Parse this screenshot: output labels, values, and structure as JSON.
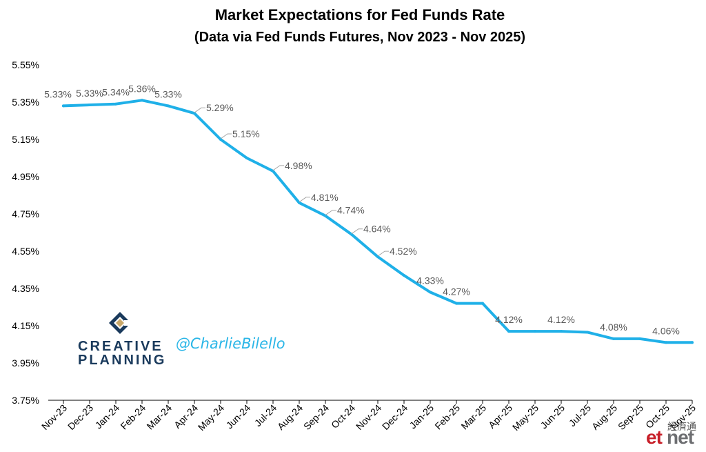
{
  "chart_data": {
    "type": "line",
    "title": "Market Expectations for Fed Funds Rate",
    "subtitle": "(Data via Fed Funds Futures, Nov 2023 - Nov 2025)",
    "categories": [
      "Nov-23",
      "Dec-23",
      "Jan-24",
      "Feb-24",
      "Mar-24",
      "Apr-24",
      "May-24",
      "Jun-24",
      "Jul-24",
      "Aug-24",
      "Sep-24",
      "Oct-24",
      "Nov-24",
      "Dec-24",
      "Jan-25",
      "Feb-25",
      "Mar-25",
      "Apr-25",
      "May-25",
      "Jun-25",
      "Jul-25",
      "Aug-25",
      "Sep-25",
      "Oct-25",
      "Nov-25"
    ],
    "series": [
      {
        "values": [
          5.33,
          5.335,
          5.34,
          5.36,
          5.33,
          5.29,
          5.15,
          5.05,
          4.98,
          4.81,
          4.74,
          4.64,
          4.52,
          4.42,
          4.33,
          4.27,
          4.27,
          4.12,
          4.12,
          4.12,
          4.115,
          4.08,
          4.08,
          4.06,
          4.06
        ],
        "labels": [
          "5.33%",
          "5.33%",
          "5.34%",
          "5.36%",
          "5.33%",
          "5.29%",
          "5.15%",
          "",
          "4.98%",
          "4.81%",
          "4.74%",
          "4.64%",
          "4.52%",
          "",
          "4.33%",
          "4.27%",
          "",
          "4.12%",
          "",
          "4.12%",
          "",
          "4.08%",
          "",
          "4.06%",
          ""
        ],
        "color": "#1fb0e8"
      }
    ],
    "ylim": [
      3.75,
      5.55
    ],
    "yticks": [
      "3.75%",
      "3.95%",
      "4.15%",
      "4.35%",
      "4.55%",
      "4.75%",
      "4.95%",
      "5.15%",
      "5.35%",
      "5.55%"
    ],
    "ytick_values": [
      3.75,
      3.95,
      4.15,
      4.35,
      4.55,
      4.75,
      4.95,
      5.15,
      5.35,
      5.55
    ],
    "xlabel": "",
    "ylabel": "",
    "grid": false,
    "legend": "none"
  },
  "branding": {
    "logo_line1": "CREATIVE",
    "logo_line2": "PLANNING",
    "logo_icon": "creative-planning-logo-icon",
    "handle": "@CharlieBilello",
    "watermark_cjk": "經濟通",
    "watermark_et": "et",
    "watermark_net": "net"
  },
  "colors": {
    "line": "#1fb0e8",
    "label": "#595959",
    "axis": "#000000",
    "handle": "#2ab6e7",
    "logo": "#1a3a5c",
    "logo_gold": "#c9a86a"
  }
}
